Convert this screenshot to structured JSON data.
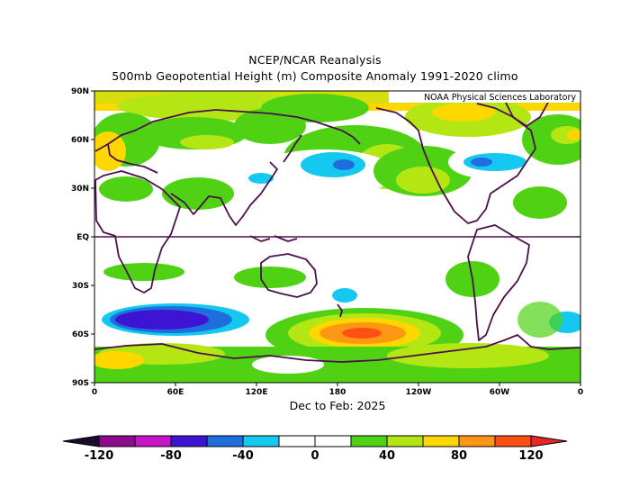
{
  "header": {
    "title": "NCEP/NCAR Reanalysis",
    "subtitle": "500mb Geopotential Height (m) Composite Anomaly 1991-2020 climo",
    "credit": "NOAA Physical Sciences Laboratory"
  },
  "period": "Dec to Feb: 2025",
  "map": {
    "lat_ticks": [
      "90N",
      "60N",
      "30N",
      "EQ",
      "30S",
      "60S",
      "90S"
    ],
    "lon_ticks": [
      "0",
      "60E",
      "120E",
      "180",
      "120W",
      "60W",
      "0"
    ],
    "land_outline_color": "#4b0f4b",
    "equator_line": true,
    "field": "500mb geopotential height anomaly",
    "anomaly_centers": [
      {
        "lon": 35,
        "lat": -50,
        "value": -80
      },
      {
        "lon": 175,
        "lat": 38,
        "value": -40
      },
      {
        "lon": 290,
        "lat": 45,
        "value": -40
      },
      {
        "lon": 200,
        "lat": -60,
        "value": 120
      },
      {
        "lon": 310,
        "lat": 75,
        "value": 80
      },
      {
        "lon": 355,
        "lat": 55,
        "value": 60
      }
    ]
  },
  "colorbar": {
    "labels": [
      "-120",
      "-80",
      "-40",
      "0",
      "40",
      "80",
      "120"
    ],
    "colors": [
      "#8c0a8c",
      "#c814c8",
      "#3c14d2",
      "#1e6ede",
      "#14c8f0",
      "#ffffff",
      "#ffffff",
      "#50d214",
      "#b4e614",
      "#ffd700",
      "#ff9614",
      "#ff5014"
    ],
    "under_color": "#1a0a2e",
    "over_color": "#e62828"
  }
}
